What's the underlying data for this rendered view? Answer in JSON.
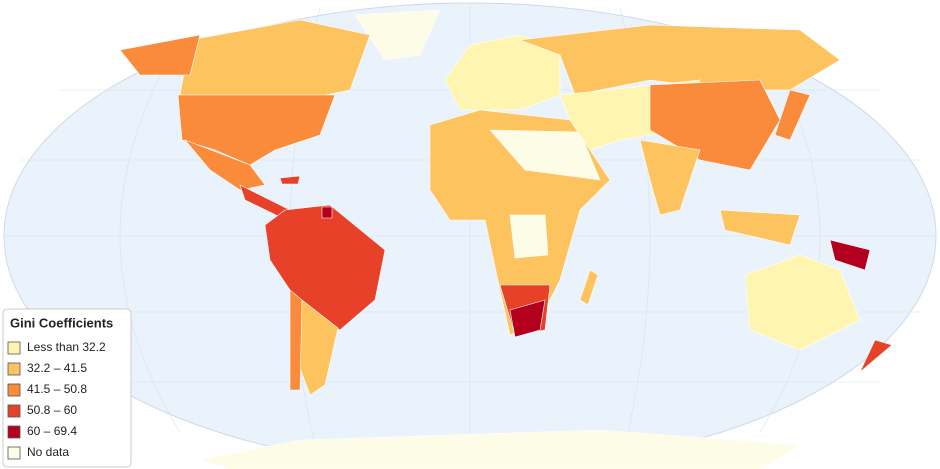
{
  "legend": {
    "title": "Gini Coefficients",
    "items": [
      {
        "label": "Less than 32.2",
        "color": "#fef6b0"
      },
      {
        "label": "32.2 – 41.5",
        "color": "#fdc35f"
      },
      {
        "label": "41.5 – 50.8",
        "color": "#f98b3a"
      },
      {
        "label": "50.8 – 60",
        "color": "#e8412a"
      },
      {
        "label": "60 – 69.4",
        "color": "#b3001e"
      },
      {
        "label": "No data",
        "color": "#fdfce6"
      }
    ]
  }
}
